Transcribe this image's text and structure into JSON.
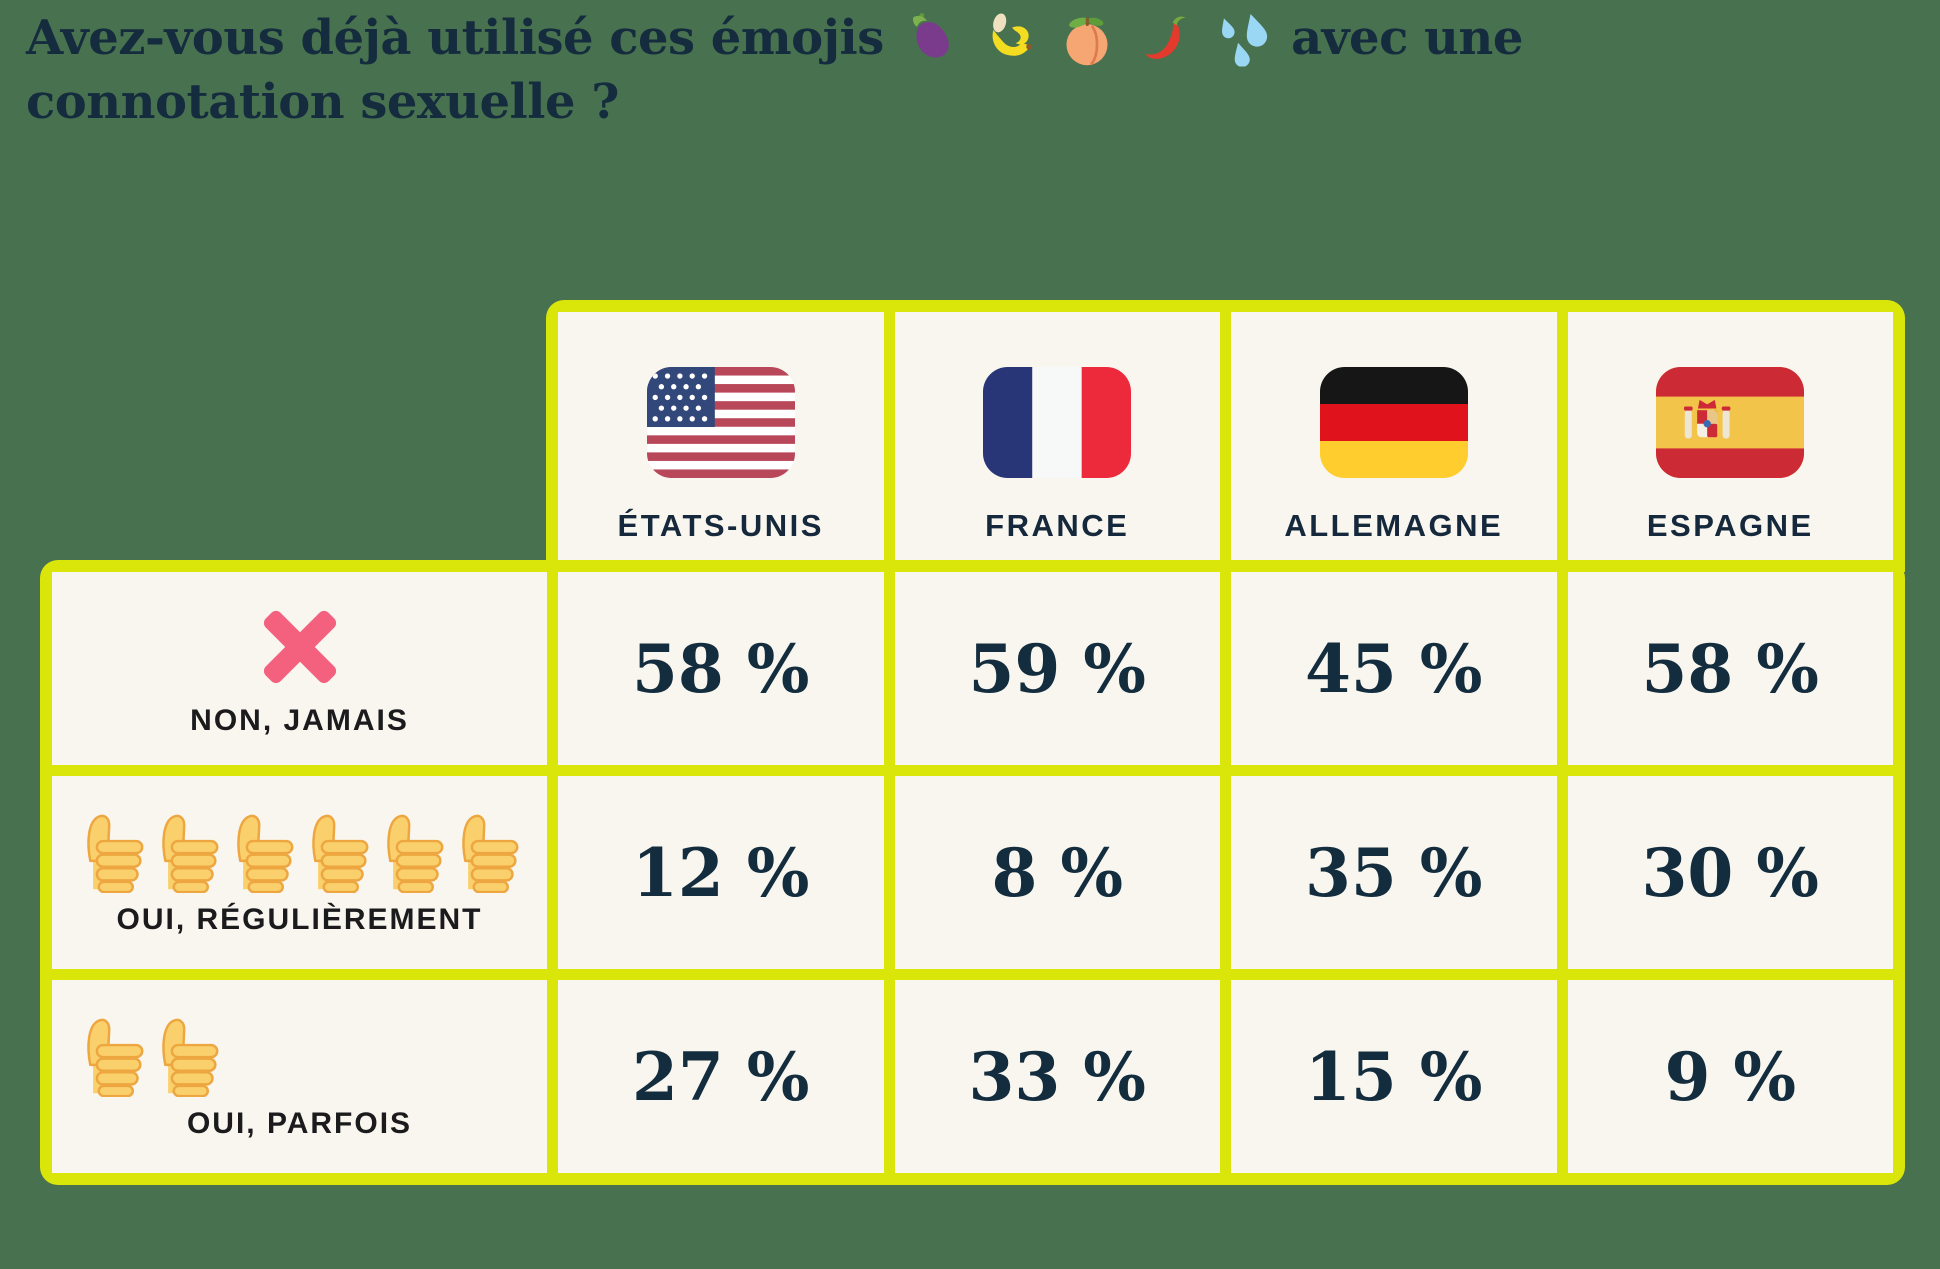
{
  "colors": {
    "background": "#48714F",
    "table_border": "#DAE60A",
    "cell_background": "#F8F6EE",
    "title_navy": "#142C3E",
    "value_navy": "#132C3E",
    "row_label_black": "#1B1B1D",
    "cross_pink": "#F4617E"
  },
  "title": {
    "text_before_emojis": "Avez-vous déjà utilisé ces émojis",
    "text_after_emojis": "avec une",
    "line2": "connotation sexuelle ?",
    "emojis": [
      "eggplant",
      "banana",
      "peach",
      "hot-pepper",
      "sweat-droplets"
    ]
  },
  "table": {
    "columns": [
      {
        "flag": "etats-unis",
        "label": "ÉTATS-UNIS"
      },
      {
        "flag": "france",
        "label": "FRANCE"
      },
      {
        "flag": "allemagne",
        "label": "ALLEMAGNE"
      },
      {
        "flag": "espagne",
        "label": "ESPAGNE"
      }
    ],
    "rows": [
      {
        "label": "NON, JAMAIS",
        "icon": "cross-mark",
        "thumbs": 0,
        "values": [
          "58 %",
          "59 %",
          "45 %",
          "58 %"
        ]
      },
      {
        "label": "OUI, RÉGULIÈREMENT",
        "icon": "thumbs-up",
        "thumbs": 6,
        "values": [
          "12 %",
          "8 %",
          "35 %",
          "30 %"
        ]
      },
      {
        "label": "OUI, PARFOIS",
        "icon": "thumbs-up",
        "thumbs": 2,
        "values": [
          "27 %",
          "33 %",
          "15 %",
          "9 %"
        ]
      }
    ]
  },
  "chart_data": {
    "type": "table",
    "title": "Avez-vous déjà utilisé ces émojis 🍆🍌🍑🌶️💦 avec une connotation sexuelle ?",
    "categories": [
      "États-Unis",
      "France",
      "Allemagne",
      "Espagne"
    ],
    "series": [
      {
        "name": "Non, jamais",
        "values": [
          58,
          59,
          45,
          58
        ]
      },
      {
        "name": "Oui, régulièrement",
        "values": [
          12,
          8,
          35,
          30
        ]
      },
      {
        "name": "Oui, parfois",
        "values": [
          27,
          33,
          15,
          9
        ]
      }
    ],
    "unit": "%"
  }
}
